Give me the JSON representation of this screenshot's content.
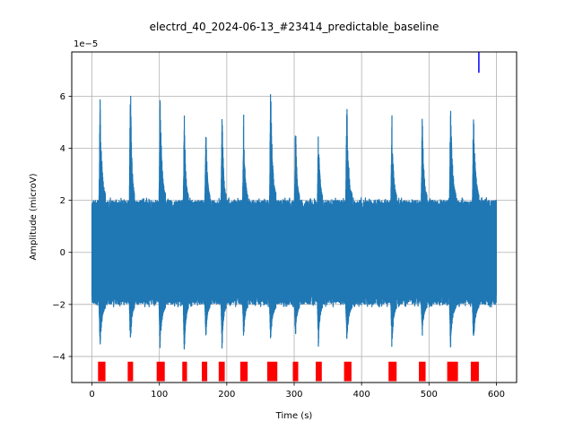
{
  "chart_data": {
    "type": "line",
    "title": "electrd_40_2024-06-13_#23414_predictable_baseline",
    "xlabel": "Time (s)",
    "ylabel": "Amplitude (microV)",
    "y_offset_label": "1e−5",
    "xlim": [
      -30,
      630
    ],
    "ylim": [
      -5.0,
      7.7
    ],
    "x_ticks": [
      0,
      100,
      200,
      300,
      400,
      500,
      600
    ],
    "y_ticks": [
      -4,
      -2,
      0,
      2,
      4,
      6
    ],
    "grid": true,
    "series": [
      {
        "color": "#1f77b4",
        "baseline_band": [
          -1.6,
          1.6
        ],
        "duration": 600,
        "spikes": [
          {
            "t": 12,
            "max": 6.1,
            "min": -3.85,
            "width": 8
          },
          {
            "t": 57,
            "max": 7.1,
            "min": -3.8,
            "width": 6
          },
          {
            "t": 101,
            "max": 6.3,
            "min": -3.85,
            "width": 8
          },
          {
            "t": 137,
            "max": 5.5,
            "min": -4.3,
            "width": 6
          },
          {
            "t": 169,
            "max": 5.1,
            "min": -3.4,
            "width": 6
          },
          {
            "t": 193,
            "max": 5.8,
            "min": -3.8,
            "width": 6
          },
          {
            "t": 225,
            "max": 5.6,
            "min": -3.4,
            "width": 6
          },
          {
            "t": 265,
            "max": 6.7,
            "min": -3.7,
            "width": 8
          },
          {
            "t": 302,
            "max": 5.2,
            "min": -3.4,
            "width": 6
          },
          {
            "t": 336,
            "max": 5.2,
            "min": -3.7,
            "width": 6
          },
          {
            "t": 378,
            "max": 6.1,
            "min": -3.65,
            "width": 8
          },
          {
            "t": 445,
            "max": 5.4,
            "min": -3.8,
            "width": 7
          },
          {
            "t": 490,
            "max": 5.4,
            "min": -3.4,
            "width": 7
          },
          {
            "t": 532,
            "max": 6.2,
            "min": -3.8,
            "width": 8
          },
          {
            "t": 566,
            "max": 6.0,
            "min": -3.6,
            "width": 8
          }
        ]
      }
    ],
    "event_markers": {
      "color": "#ff0000",
      "y_range": [
        -4.95,
        -4.2
      ],
      "intervals": [
        [
          9,
          20
        ],
        [
          53,
          61
        ],
        [
          96,
          108
        ],
        [
          134,
          141
        ],
        [
          163,
          171
        ],
        [
          188,
          197
        ],
        [
          220,
          231
        ],
        [
          260,
          275
        ],
        [
          298,
          306
        ],
        [
          332,
          341
        ],
        [
          374,
          385
        ],
        [
          440,
          452
        ],
        [
          485,
          495
        ],
        [
          527,
          543
        ],
        [
          562,
          574
        ]
      ]
    },
    "vertical_marker": {
      "color": "#0000ff",
      "x": 574,
      "y_range": [
        6.9,
        7.7
      ]
    }
  }
}
